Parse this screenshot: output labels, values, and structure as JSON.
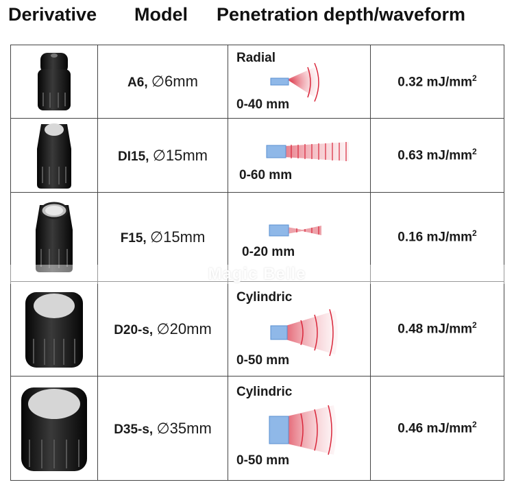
{
  "headers": {
    "derivative": "Derivative",
    "model": "Model",
    "waveform": "Penetration depth/waveform"
  },
  "rows": [
    {
      "model": "A6, ",
      "diameter": "∅6mm",
      "wave_type": "Radial",
      "depth": "0-40 mm",
      "energy_value": "0.32 mJ/mm",
      "energy_exp": "2"
    },
    {
      "model": "DI15, ",
      "diameter": "∅15mm",
      "wave_type": "",
      "depth": "0-60 mm",
      "energy_value": "0.63 mJ/mm",
      "energy_exp": "2"
    },
    {
      "model": "F15, ",
      "diameter": "∅15mm",
      "wave_type": "",
      "depth": "0-20 mm",
      "energy_value": "0.16 mJ/mm",
      "energy_exp": "2"
    },
    {
      "model": "D20-s, ",
      "diameter": "∅20mm",
      "wave_type": "Cylindric",
      "depth": "0-50 mm",
      "energy_value": "0.48 mJ/mm",
      "energy_exp": "2"
    },
    {
      "model": "D35-s, ",
      "diameter": "∅35mm",
      "wave_type": "Cylindric",
      "depth": "0-50 mm",
      "energy_value": "0.46 mJ/mm",
      "energy_exp": "2"
    }
  ],
  "watermark": "Magic Belle"
}
